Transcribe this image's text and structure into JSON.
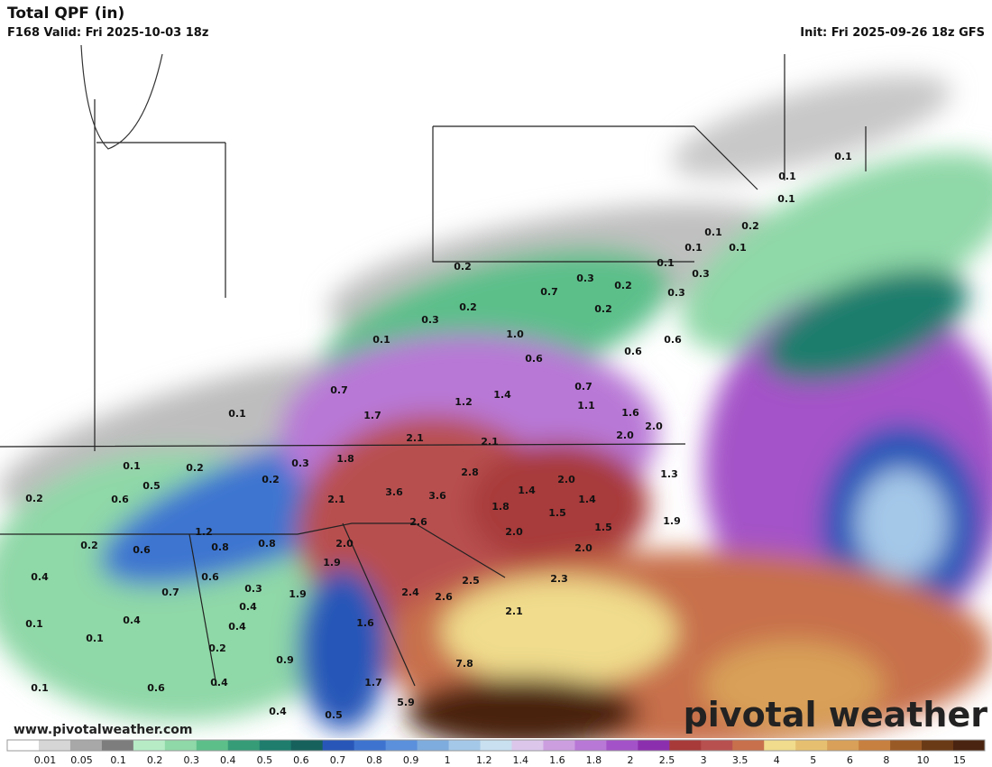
{
  "header": {
    "title": "Total QPF (in)",
    "valid": "F168 Valid: Fri 2025-10-03 18z",
    "init": "Init: Fri 2025-09-26 18z GFS"
  },
  "map_labels": [
    "0.1",
    "0.1",
    "0.1",
    "0.2",
    "0.1",
    "0.1",
    "0.1",
    "0.1",
    "0.3",
    "0.2",
    "0.3",
    "0.7",
    "0.2",
    "0.3",
    "0.2",
    "0.2",
    "0.3",
    "0.1",
    "1.0",
    "0.6",
    "0.6",
    "0.6",
    "0.7",
    "0.7",
    "1.4",
    "1.2",
    "1.1",
    "1.6",
    "1.7",
    "0.1",
    "2.0",
    "2.0",
    "2.1",
    "2.1",
    "1.8",
    "0.1",
    "0.2",
    "0.3",
    "0.5",
    "0.2",
    "2.8",
    "2.0",
    "1.3",
    "3.6",
    "3.6",
    "1.4",
    "0.2",
    "0.6",
    "2.1",
    "1.4",
    "1.8",
    "1.5",
    "1.9",
    "1.5",
    "1.2",
    "2.6",
    "2.0",
    "0.2",
    "0.6",
    "0.8",
    "0.8",
    "2.0",
    "2.0",
    "0.6",
    "1.9",
    "0.4",
    "0.7",
    "0.3",
    "2.5",
    "2.3",
    "0.4",
    "1.9",
    "2.4",
    "2.6",
    "0.1",
    "0.4",
    "0.4",
    "1.6",
    "2.1",
    "0.1",
    "0.2",
    "0.9",
    "7.8",
    "0.4",
    "1.7",
    "0.1",
    "0.6",
    "5.9",
    "0.4",
    "0.5"
  ],
  "website": "www.pivotalweather.com",
  "brand": "pivotal weather",
  "colorbar": {
    "labels": [
      "0.01",
      "0.05",
      "0.1",
      "0.2",
      "0.3",
      "0.4",
      "0.5",
      "0.6",
      "0.7",
      "0.8",
      "0.9",
      "1",
      "1.2",
      "1.4",
      "1.6",
      "1.8",
      "2",
      "2.5",
      "3",
      "3.5",
      "4",
      "5",
      "6",
      "8",
      "10",
      "15"
    ],
    "colors": [
      "#ffffff",
      "#d6d6d6",
      "#a8a8a8",
      "#7d7d7d",
      "#b6ebc6",
      "#8fd8a7",
      "#5cbf8a",
      "#369c78",
      "#1e7d6d",
      "#16615c",
      "#2856b8",
      "#3e74d0",
      "#5a90dc",
      "#7eacde",
      "#a4c8e8",
      "#c8e0f0",
      "#dcc6ea",
      "#cc9ee0",
      "#b878d6",
      "#a452c8",
      "#8c2fae",
      "#a83a3a",
      "#b85050",
      "#c8704c",
      "#f0dc8c",
      "#e6c070",
      "#d8a058",
      "#c88040",
      "#9a5a26",
      "#6a3a16",
      "#4a2410"
    ]
  }
}
